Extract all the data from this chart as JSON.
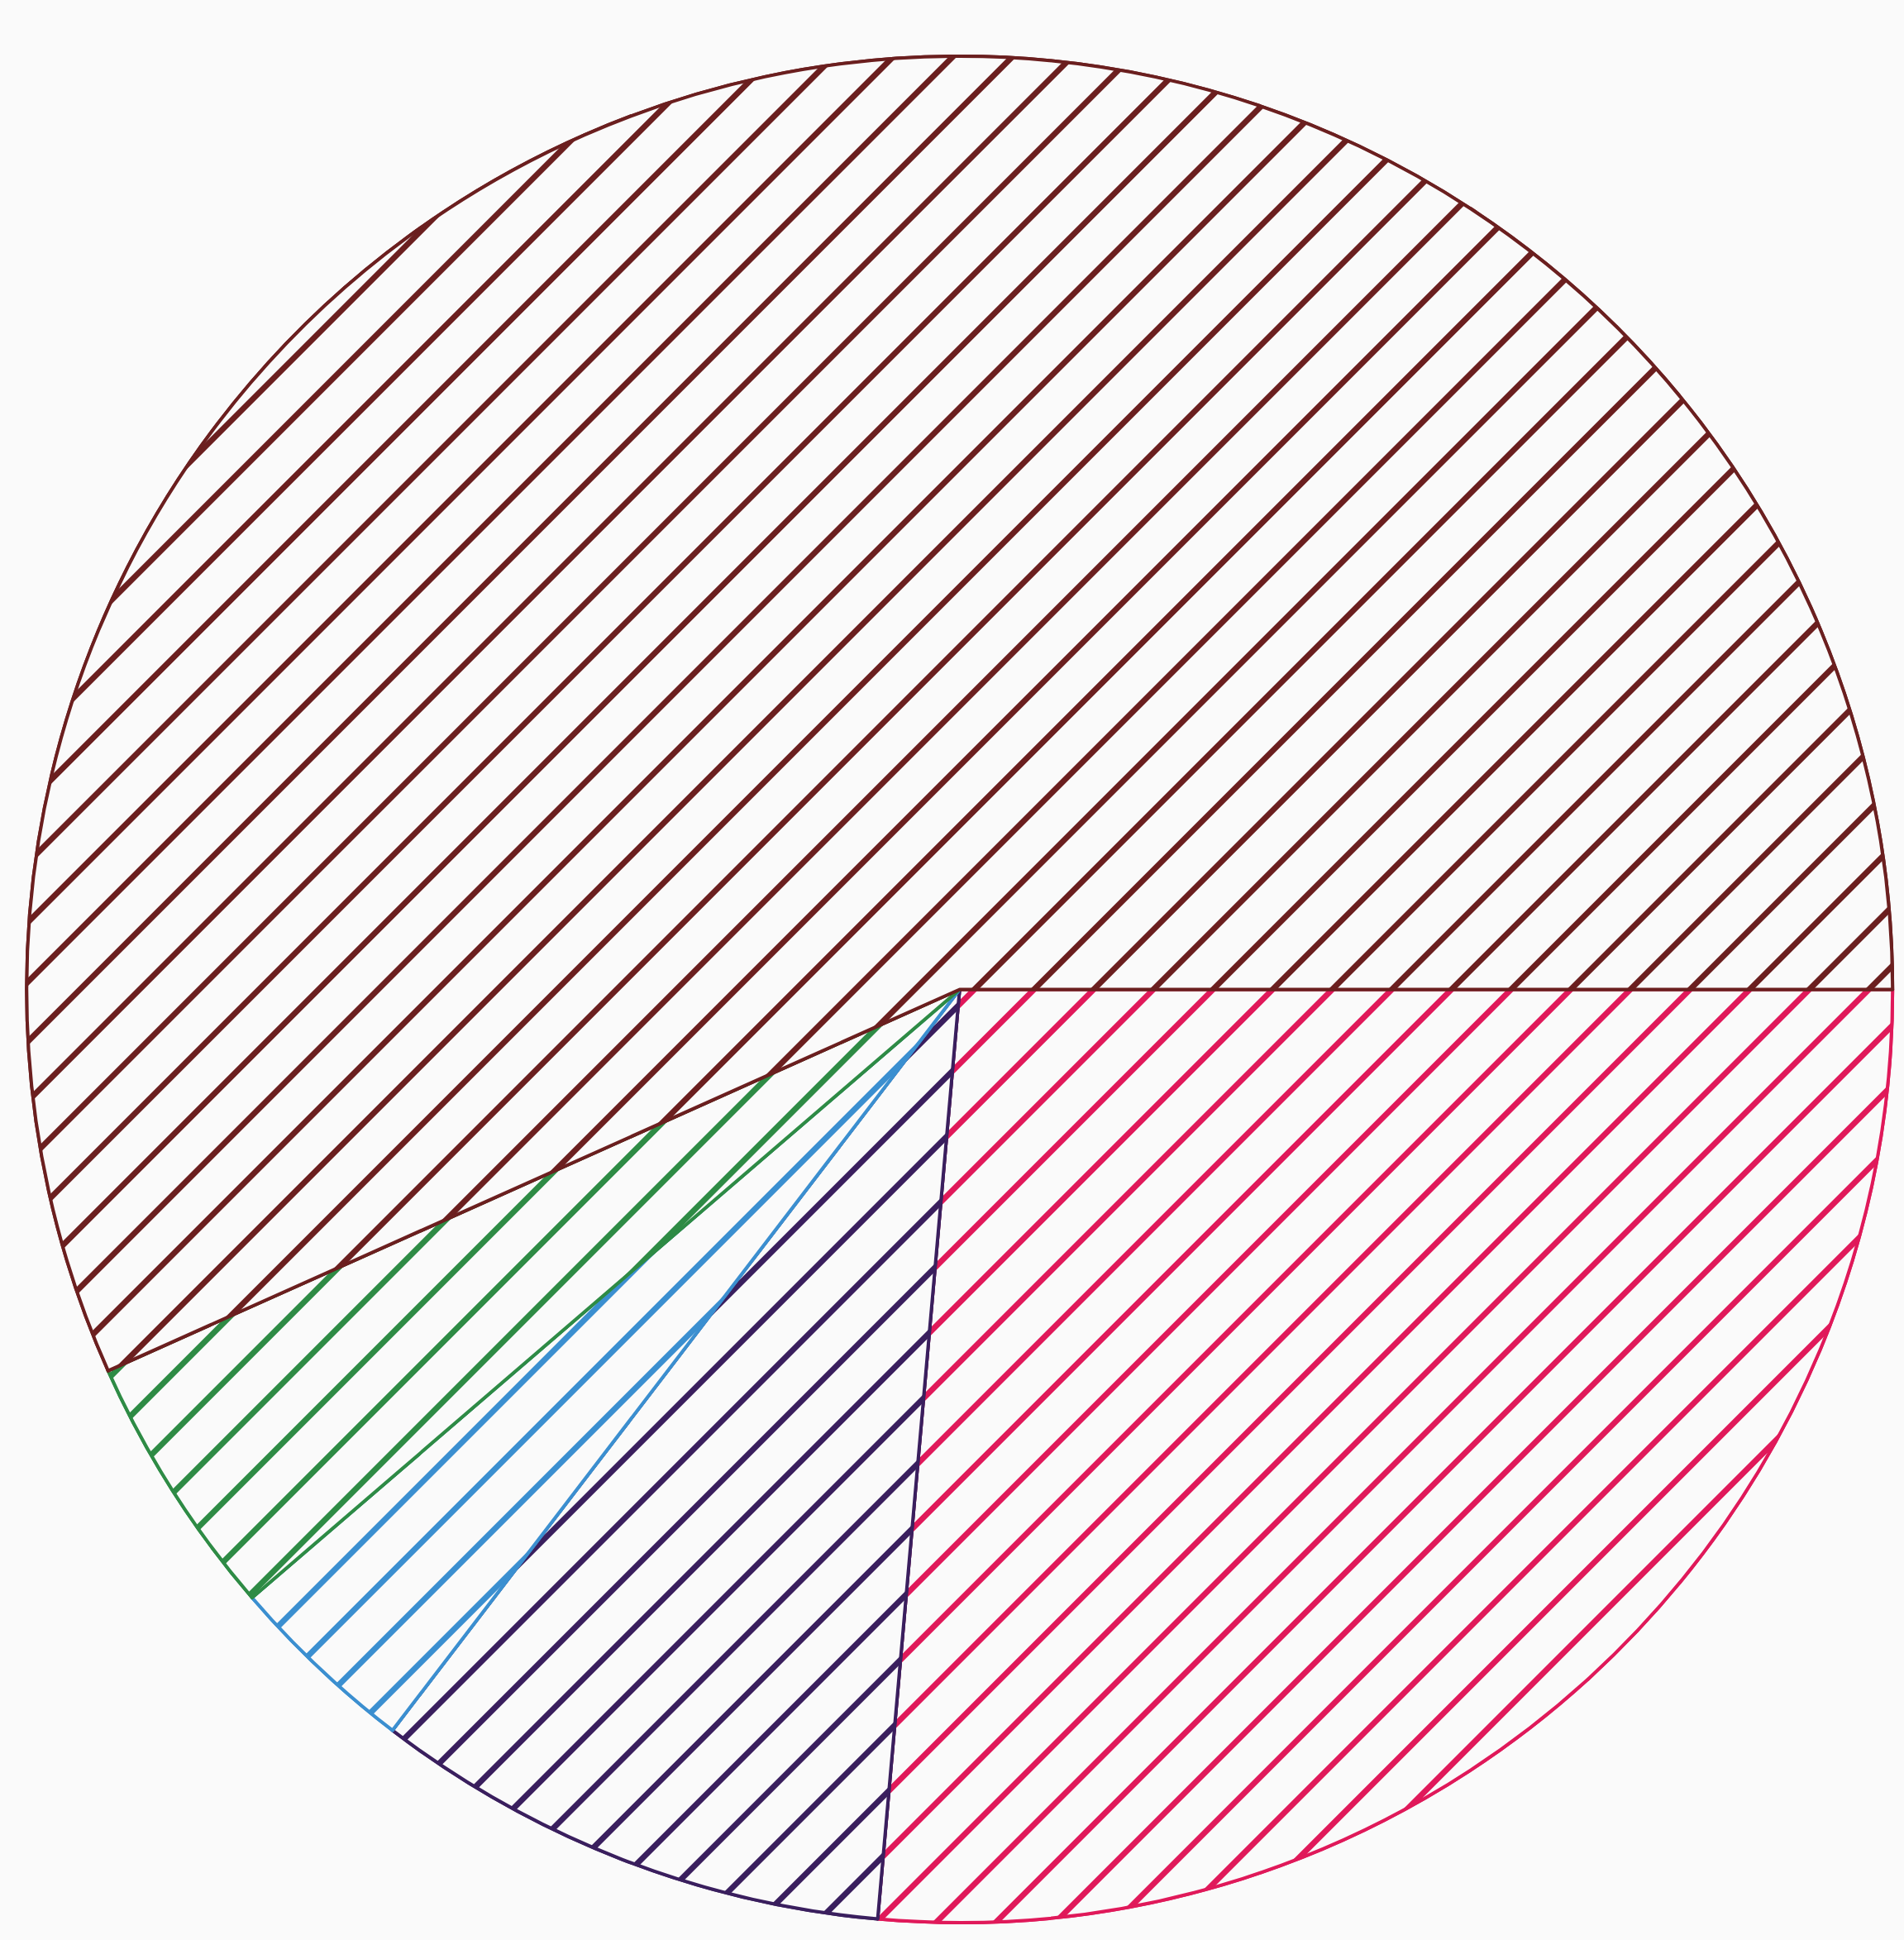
{
  "chart_data": {
    "type": "pie",
    "categories": [
      null,
      null,
      null,
      null,
      null
    ],
    "values": [
      26.4,
      9.0,
      3.3,
      4.6,
      56.7
    ],
    "colors": [
      "#e0195a",
      "#3a1f5e",
      "#3b8fd0",
      "#2e8b45",
      "#6b1f1f"
    ]
  }
}
